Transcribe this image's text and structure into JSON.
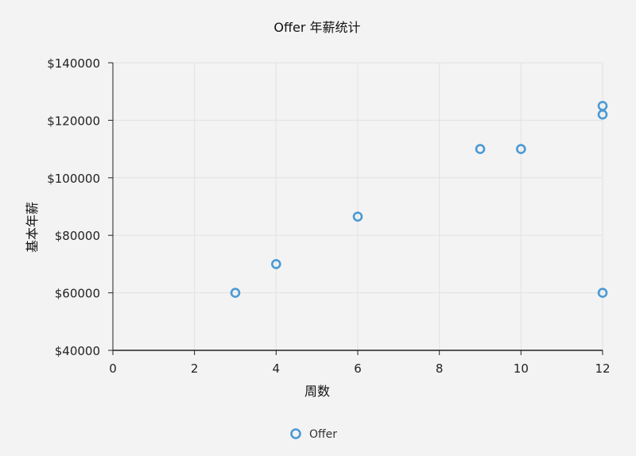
{
  "chart_data": {
    "type": "scatter",
    "title": "Offer 年薪统计",
    "xlabel": "周数",
    "ylabel": "基本年薪",
    "xlim": [
      0,
      12
    ],
    "ylim": [
      40000,
      140000
    ],
    "x_ticks": [
      0,
      2,
      4,
      6,
      8,
      10,
      12
    ],
    "y_ticks": [
      40000,
      60000,
      80000,
      100000,
      120000,
      140000
    ],
    "x_tick_labels": [
      "0",
      "2",
      "4",
      "6",
      "8",
      "10",
      "12"
    ],
    "y_tick_labels": [
      "$40000",
      "$60000",
      "$80000",
      "$100000",
      "$120000",
      "$140000"
    ],
    "grid": true,
    "legend_position": "bottom-center",
    "series": [
      {
        "name": "Offer",
        "color": "#4a9ad4",
        "marker": "hollow-circle",
        "x": [
          3,
          4,
          6,
          9,
          10,
          12,
          12,
          12
        ],
        "y": [
          60000,
          70000,
          86500,
          110000,
          110000,
          125000,
          122000,
          60000
        ]
      }
    ]
  }
}
